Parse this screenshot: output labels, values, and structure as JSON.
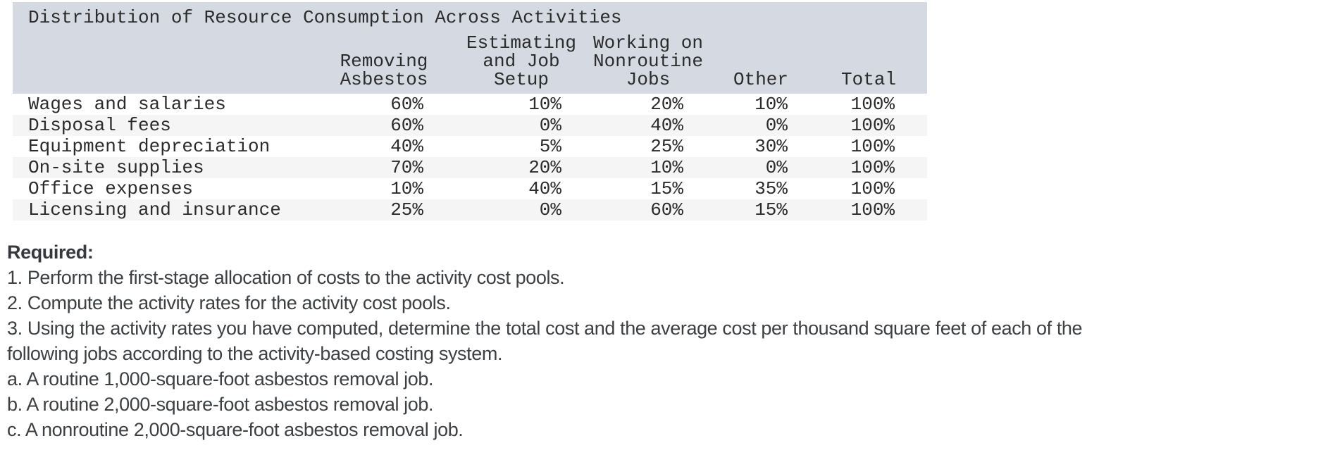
{
  "colors": {
    "table_header_bg": "#d5d9e2",
    "row_stripe": "#f5f5f5",
    "table_text": "#2b2b2b",
    "body_text": "#3c4043"
  },
  "table": {
    "title": "Distribution of Resource Consumption Across Activities",
    "columns": [
      {
        "id": "activity",
        "header_lines": [
          "",
          "",
          ""
        ]
      },
      {
        "id": "removing-asbestos",
        "header_lines": [
          "Removing",
          "Asbestos"
        ]
      },
      {
        "id": "estimating-and-job-setup",
        "header_lines": [
          "Estimating",
          "and Job",
          "Setup"
        ]
      },
      {
        "id": "working-on-nonroutine-jobs",
        "header_lines": [
          "Working on",
          "Nonroutine",
          "Jobs"
        ]
      },
      {
        "id": "other",
        "header_lines": [
          "Other"
        ]
      },
      {
        "id": "total",
        "header_lines": [
          "Total"
        ]
      }
    ],
    "rows": [
      {
        "label": "Wages and salaries",
        "values": [
          "60%",
          "10%",
          "20%",
          "10%",
          "100%"
        ]
      },
      {
        "label": "Disposal fees",
        "values": [
          "60%",
          "0%",
          "40%",
          "0%",
          "100%"
        ]
      },
      {
        "label": "Equipment depreciation",
        "values": [
          "40%",
          "5%",
          "25%",
          "30%",
          "100%"
        ]
      },
      {
        "label": "On-site supplies",
        "values": [
          "70%",
          "20%",
          "10%",
          "0%",
          "100%"
        ]
      },
      {
        "label": "Office expenses",
        "values": [
          "10%",
          "40%",
          "15%",
          "35%",
          "100%"
        ]
      },
      {
        "label": "Licensing and insurance",
        "values": [
          "25%",
          "0%",
          "60%",
          "15%",
          "100%"
        ]
      }
    ]
  },
  "required": {
    "heading": "Required:",
    "lines": [
      "1. Perform the first-stage allocation of costs to the activity cost pools.",
      "2. Compute the activity rates for the activity cost pools.",
      "3. Using the activity rates you have computed, determine the total cost and the average cost per thousand square feet of each of the",
      "following jobs according to the activity-based costing system.",
      "a. A routine 1,000-square-foot asbestos removal job.",
      "b. A routine 2,000-square-foot asbestos removal job.",
      "c. A nonroutine 2,000-square-foot asbestos removal job."
    ]
  }
}
